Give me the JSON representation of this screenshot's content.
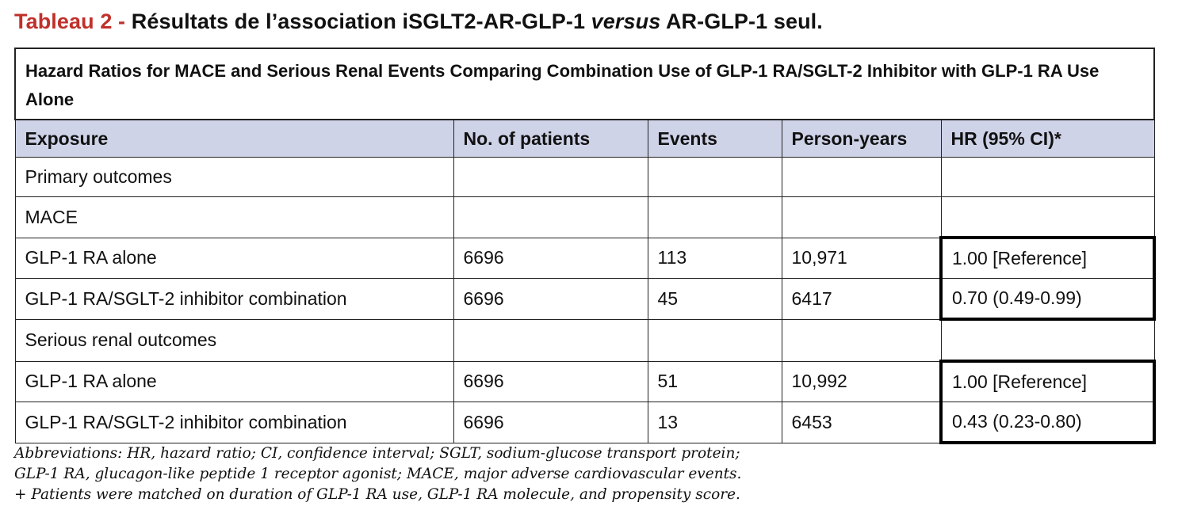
{
  "title": {
    "prefix": "Tableau 2 -",
    "main_before": "Résultats de l’association iSGLT2-AR-GLP-1",
    "italic": "versus",
    "main_after": "AR-GLP-1 seul."
  },
  "table": {
    "caption": "Hazard Ratios for MACE and Serious Renal Events Comparing Combination Use of GLP-1 RA/SGLT-2 Inhibitor with GLP-1 RA Use Alone",
    "headers": [
      "Exposure",
      "No. of patients",
      "Events",
      "Person-years",
      "HR (95% CI)*"
    ],
    "rows": [
      [
        "Primary outcomes",
        "",
        "",
        "",
        ""
      ],
      [
        "MACE",
        "",
        "",
        "",
        ""
      ],
      [
        "GLP-1 RA alone",
        "6696",
        "113",
        "10,971",
        "1.00 [Reference]"
      ],
      [
        "GLP-1 RA/SGLT-2 inhibitor combination",
        "6696",
        "45",
        "6417",
        "0.70 (0.49-0.99)"
      ],
      [
        "Serious renal outcomes",
        "",
        "",
        "",
        ""
      ],
      [
        "GLP-1 RA alone",
        "6696",
        "51",
        "10,992",
        "1.00 [Reference]"
      ],
      [
        "GLP-1 RA/SGLT-2 inhibitor combination",
        "6696",
        "13",
        "6453",
        "0.43 (0.23-0.80)"
      ]
    ]
  },
  "footnotes": [
    "Abbreviations: HR, hazard ratio; CI, confidence interval; SGLT, sodium-glucose transport protein;",
    "GLP-1 RA, glucagon-like peptide 1 receptor agonist; MACE, major adverse cardiovascular events.",
    "+ Patients were matched on duration of GLP-1 RA use, GLP-1 RA molecule, and propensity score."
  ],
  "colors": {
    "title_prefix": "#c0302b",
    "header_bg": "#cfd3e8"
  }
}
